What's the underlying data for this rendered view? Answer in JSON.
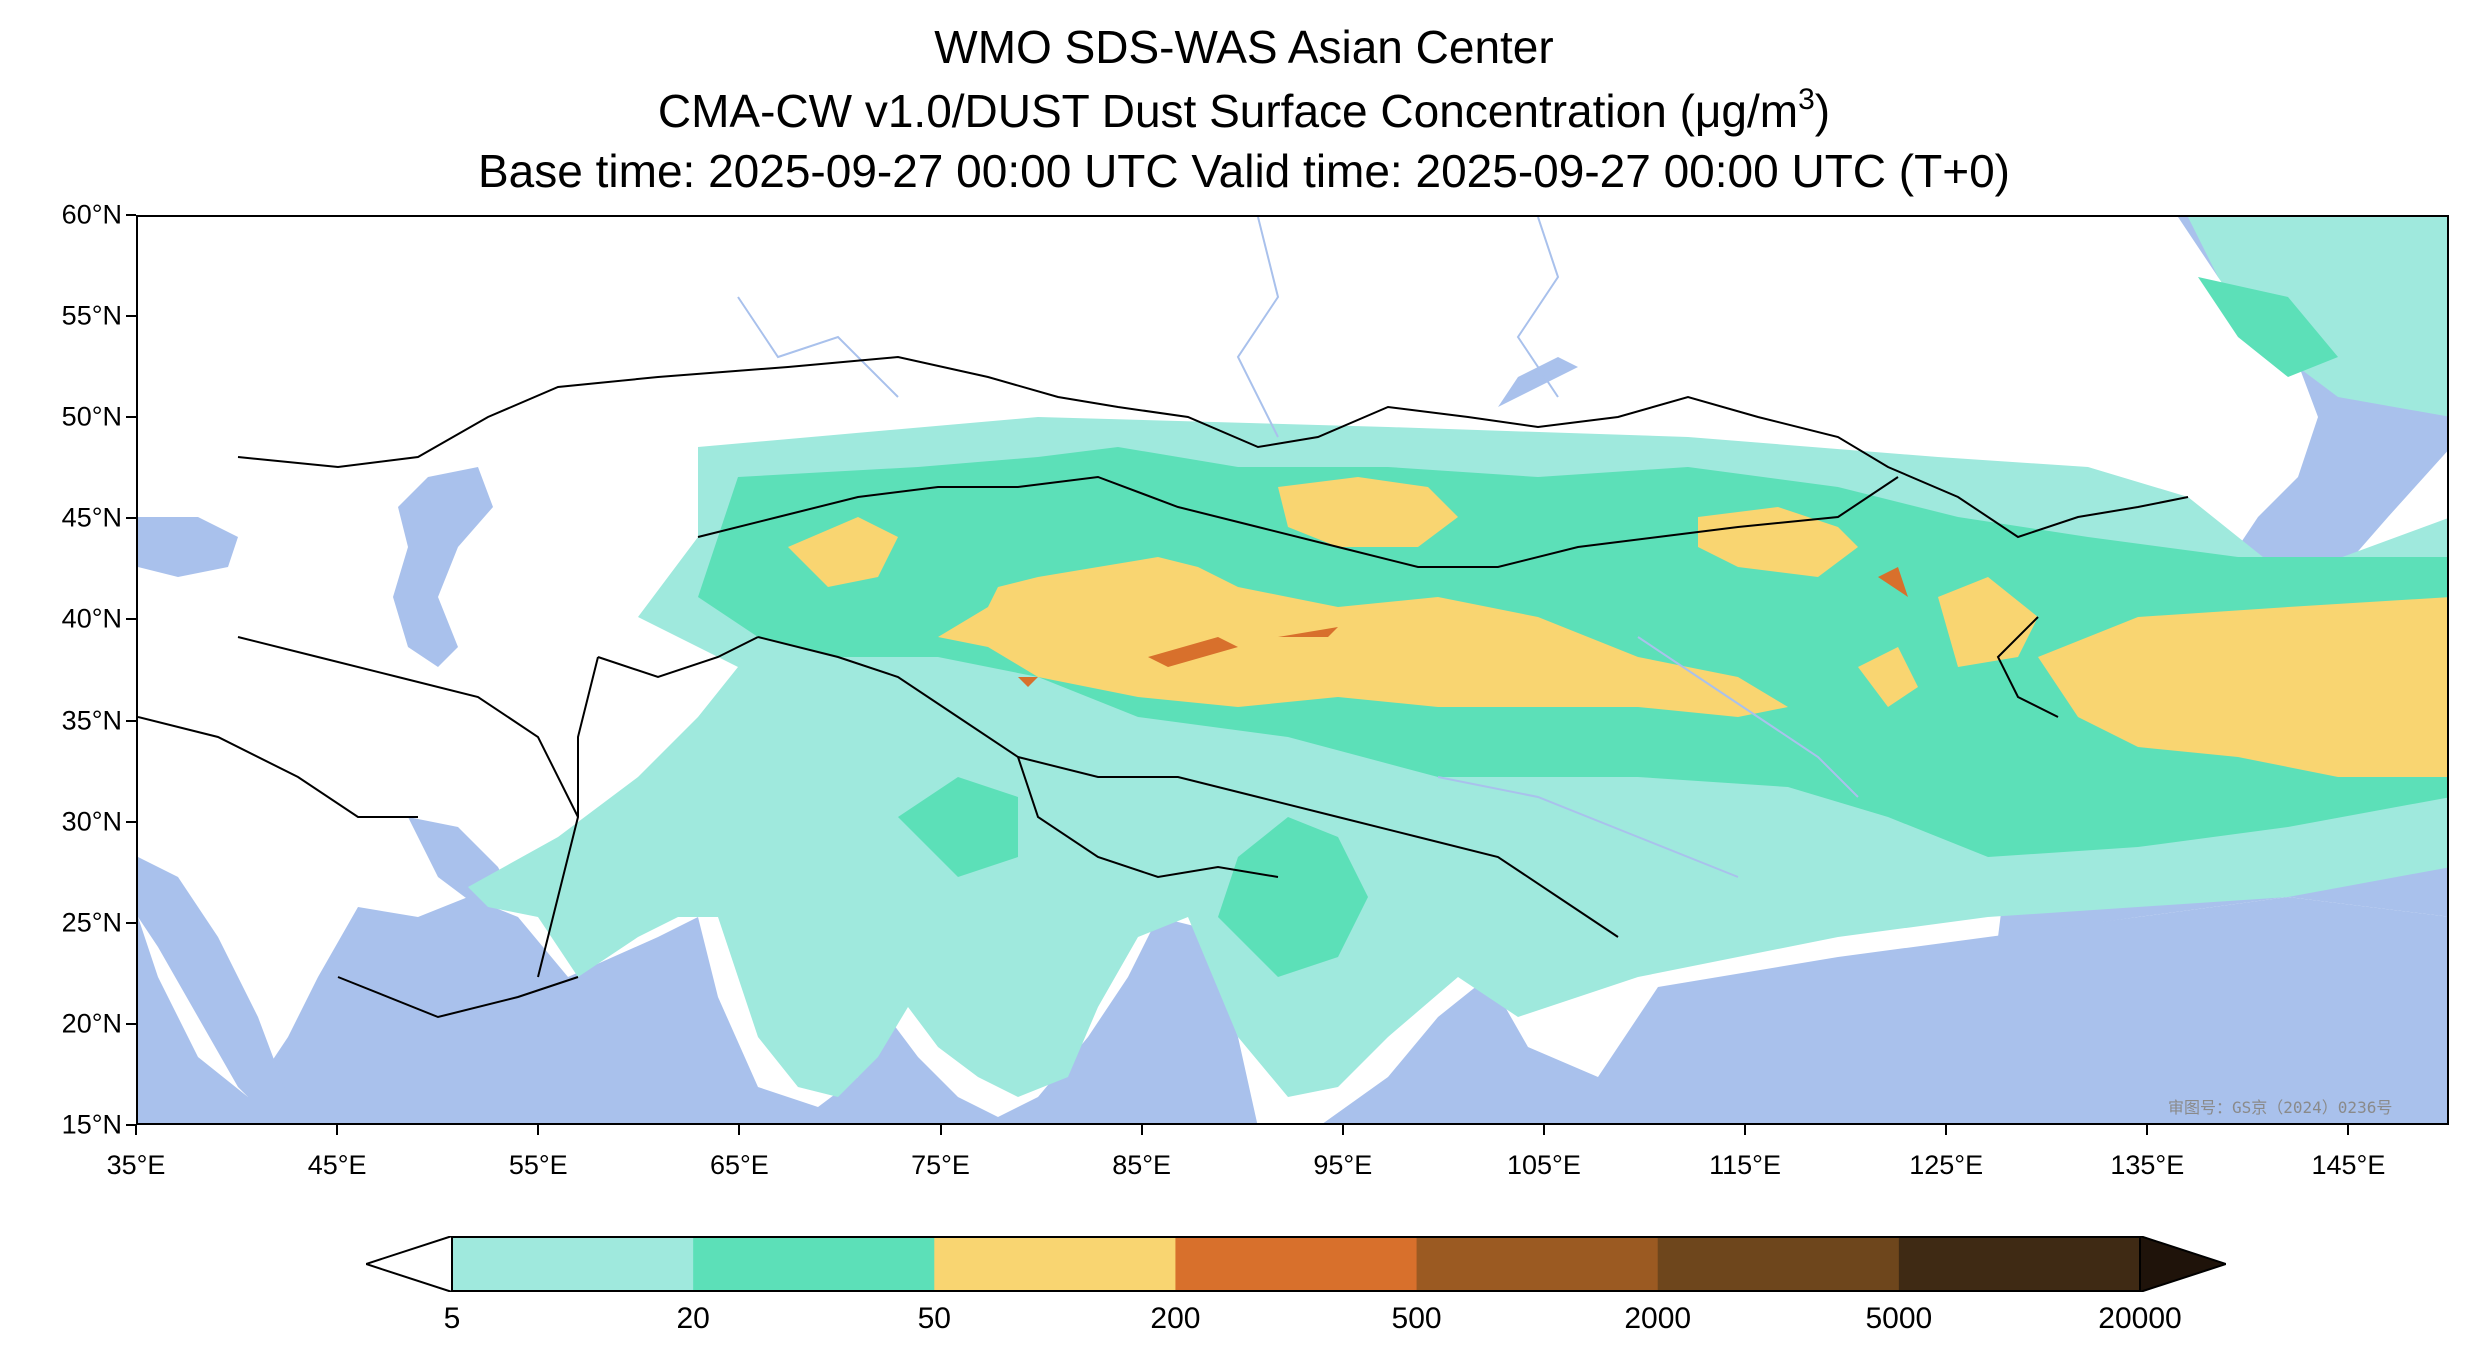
{
  "header": {
    "line1": "WMO SDS-WAS Asian Center",
    "line2_prefix": "CMA-CW v1.0/DUST Dust Surface Concentration (",
    "line2_unit_mu": "μ",
    "line2_unit_main": "g/m",
    "line2_unit_exp": "3",
    "line2_suffix": ")",
    "line3": "Base time: 2025-09-27 00:00 UTC Valid time: 2025-09-27 00:00 UTC (T+0)"
  },
  "map": {
    "lat_labels": [
      "60°N",
      "55°N",
      "50°N",
      "45°N",
      "40°N",
      "35°N",
      "30°N",
      "25°N",
      "20°N",
      "15°N"
    ],
    "lon_labels": [
      "35°E",
      "45°E",
      "55°E",
      "65°E",
      "75°E",
      "85°E",
      "95°E",
      "105°E",
      "115°E",
      "125°E",
      "135°E",
      "145°E"
    ],
    "lat_range": [
      15,
      60
    ],
    "lon_range": [
      35,
      150
    ],
    "watermark": "审图号：GS京（2024）0236号",
    "colors": {
      "ocean": "#a9c1ec",
      "land": "#ffffff",
      "border": "#000000",
      "river": "#a9c1ec"
    }
  },
  "colorbar": {
    "levels": [
      "5",
      "20",
      "50",
      "200",
      "500",
      "2000",
      "5000",
      "20000"
    ],
    "colors": [
      "#9fe9dd",
      "#5ce0b8",
      "#f9d571",
      "#d8702c",
      "#9b5a22",
      "#6e461c",
      "#3f2a14"
    ],
    "under_color": "#ffffff",
    "over_color": "#1f130a"
  },
  "legend": {
    "shading_classes": [
      {
        "range": "5-20",
        "color": "#9fe9dd"
      },
      {
        "range": "20-50",
        "color": "#5ce0b8"
      },
      {
        "range": "50-200",
        "color": "#f9d571"
      },
      {
        "range": "200-500",
        "color": "#d8702c"
      }
    ]
  }
}
